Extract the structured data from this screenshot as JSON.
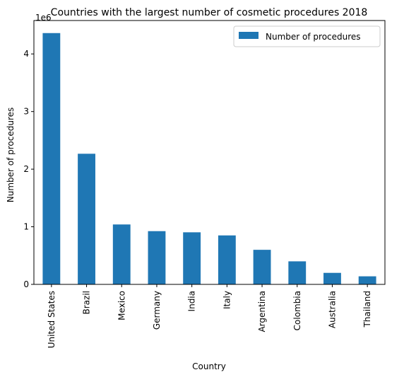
{
  "chart_data": {
    "type": "bar",
    "title": "Countries with the largest number of cosmetic procedures 2018",
    "xlabel": "Country",
    "ylabel": "Number of procedures",
    "offset_label": "1e6",
    "categories": [
      "United States",
      "Brazil",
      "Mexico",
      "Germany",
      "India",
      "Italy",
      "Argentina",
      "Colombia",
      "Australia",
      "Thailand"
    ],
    "series": [
      {
        "name": "Number of procedures",
        "values": [
          4361867,
          2267405,
          1040035,
          924035,
          904015,
          850000,
          600000,
          400000,
          200000,
          140000
        ],
        "color": "#1f77b4"
      }
    ],
    "ylim": [
      0,
      4580000
    ],
    "yticks": [
      0,
      1000000,
      2000000,
      3000000,
      4000000
    ],
    "ytick_labels": [
      "0",
      "1",
      "2",
      "3",
      "4"
    ],
    "legend_position": "upper right",
    "grid": false
  }
}
